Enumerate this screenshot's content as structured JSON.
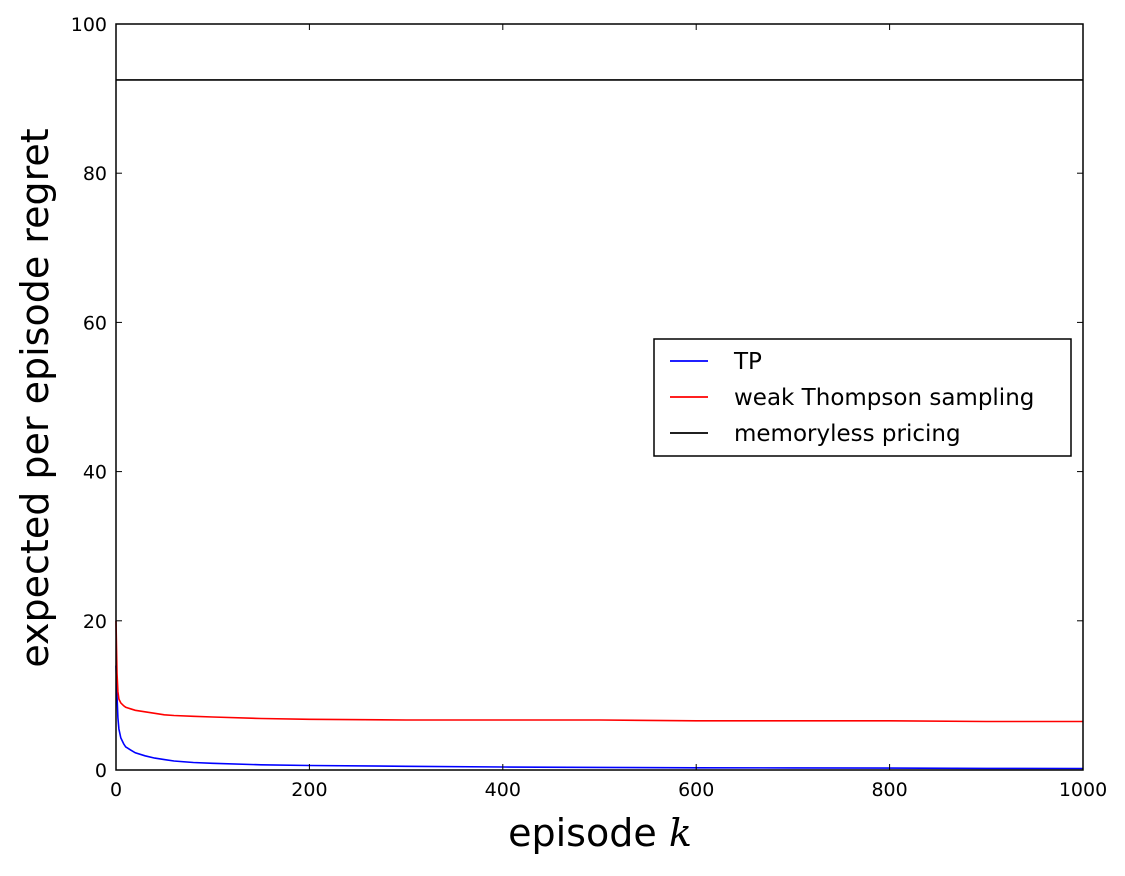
{
  "chart_data": {
    "type": "line",
    "title": "",
    "xlabel": "episode",
    "xlabel_symbol": "k",
    "ylabel": "expected per episode regret",
    "xlim": [
      0,
      1000
    ],
    "ylim": [
      0,
      100
    ],
    "xticks": [
      0,
      200,
      400,
      600,
      800,
      1000
    ],
    "yticks": [
      0,
      20,
      40,
      60,
      80,
      100
    ],
    "grid": false,
    "legend_position": "center-right",
    "series": [
      {
        "name": "TP",
        "color": "#0000ff",
        "x": [
          0,
          1,
          2,
          3,
          5,
          8,
          10,
          15,
          20,
          30,
          40,
          50,
          60,
          80,
          100,
          150,
          200,
          300,
          400,
          500,
          600,
          700,
          800,
          900,
          1000
        ],
        "y": [
          14.0,
          10.0,
          7.0,
          5.5,
          4.3,
          3.5,
          3.1,
          2.7,
          2.3,
          1.9,
          1.6,
          1.4,
          1.2,
          1.0,
          0.9,
          0.7,
          0.6,
          0.5,
          0.4,
          0.35,
          0.3,
          0.28,
          0.25,
          0.22,
          0.2
        ]
      },
      {
        "name": "weak Thompson sampling",
        "color": "#ff0000",
        "x": [
          0,
          1,
          2,
          3,
          5,
          8,
          10,
          15,
          20,
          30,
          40,
          50,
          60,
          80,
          100,
          150,
          200,
          300,
          400,
          500,
          600,
          700,
          800,
          900,
          1000
        ],
        "y": [
          20.0,
          13.0,
          10.5,
          9.5,
          9.0,
          8.6,
          8.4,
          8.2,
          8.0,
          7.8,
          7.6,
          7.4,
          7.3,
          7.2,
          7.1,
          6.9,
          6.8,
          6.7,
          6.7,
          6.7,
          6.6,
          6.6,
          6.6,
          6.5,
          6.5
        ]
      },
      {
        "name": "memoryless pricing",
        "color": "#000000",
        "x": [
          0,
          1000
        ],
        "y": [
          92.5,
          92.5
        ]
      }
    ]
  }
}
